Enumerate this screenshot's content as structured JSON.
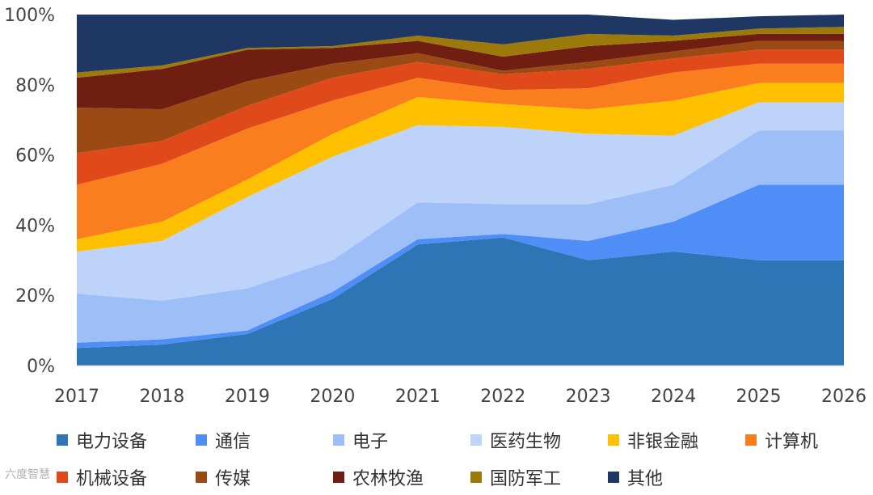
{
  "chart_data": {
    "type": "area",
    "stacked": true,
    "percent": true,
    "categories": [
      "2017",
      "2018",
      "2019",
      "2020",
      "2021",
      "2022",
      "2023",
      "2024",
      "2025",
      "2026"
    ],
    "ylim": [
      0,
      100
    ],
    "yticks": [
      "0%",
      "20%",
      "40%",
      "60%",
      "80%",
      "100%"
    ],
    "legend_position": "bottom",
    "series": [
      {
        "name": "电力设备",
        "color": "#2E75B6",
        "values": [
          5,
          6,
          9,
          19,
          34.5,
          36.5,
          30,
          32.5,
          30,
          30
        ]
      },
      {
        "name": "通信",
        "color": "#4F8EF7",
        "values": [
          1.5,
          1.5,
          1,
          2,
          1.5,
          1,
          5.5,
          8.5,
          21.5,
          21.5
        ]
      },
      {
        "name": "电子",
        "color": "#9DBEF7",
        "values": [
          14,
          11,
          12,
          9,
          10.5,
          8.5,
          10.5,
          10.5,
          15.5,
          15.5
        ]
      },
      {
        "name": "医药生物",
        "color": "#BDD3F9",
        "values": [
          12,
          17,
          26,
          29.5,
          22,
          22,
          20,
          14,
          8,
          8
        ]
      },
      {
        "name": "非银金融",
        "color": "#FFC000",
        "values": [
          3.5,
          5.5,
          5,
          6.5,
          8,
          6.5,
          7,
          10,
          5.5,
          5.5
        ]
      },
      {
        "name": "计算机",
        "color": "#FA7D1E",
        "values": [
          15.5,
          16.5,
          14.5,
          9.5,
          5.5,
          4,
          6,
          8,
          5.5,
          5.5
        ]
      },
      {
        "name": "机械设备",
        "color": "#E0491A",
        "values": [
          9,
          6.5,
          6.5,
          6.5,
          4.5,
          4.5,
          5.5,
          4,
          4,
          4
        ]
      },
      {
        "name": "传媒",
        "color": "#9C4A13",
        "values": [
          13,
          9,
          7,
          4,
          2.5,
          1,
          2,
          2,
          2.5,
          2.5
        ]
      },
      {
        "name": "农林牧渔",
        "color": "#711E12",
        "values": [
          8.5,
          11.5,
          9,
          4.5,
          3.5,
          4,
          4.5,
          3,
          2,
          2
        ]
      },
      {
        "name": "国防军工",
        "color": "#9B7A0B",
        "values": [
          1.5,
          1,
          0.5,
          0.5,
          1.5,
          3.5,
          3.5,
          1.5,
          1.5,
          2
        ]
      },
      {
        "name": "其他",
        "color": "#1F3763",
        "values": [
          16.5,
          14.5,
          10.5,
          9,
          6.5,
          8.5,
          5.5,
          4.5,
          3.5,
          3.5
        ]
      }
    ]
  },
  "watermark": "六度智慧"
}
